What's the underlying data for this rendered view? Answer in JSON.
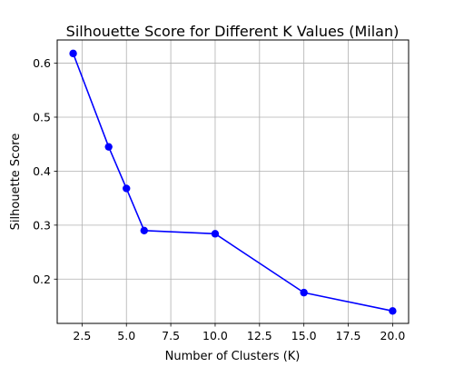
{
  "chart_data": {
    "type": "line",
    "title": "Silhouette Score for Different K Values (Milan)",
    "xlabel": "Number of Clusters (K)",
    "ylabel": "Silhouette Score",
    "xlim": [
      1.1,
      20.9
    ],
    "ylim": [
      0.118,
      0.643
    ],
    "xticks": [
      2.5,
      5.0,
      7.5,
      10.0,
      12.5,
      15.0,
      17.5,
      20.0
    ],
    "xtick_labels": [
      "2.5",
      "5.0",
      "7.5",
      "10.0",
      "12.5",
      "15.0",
      "17.5",
      "20.0"
    ],
    "yticks": [
      0.2,
      0.3,
      0.4,
      0.5,
      0.6
    ],
    "ytick_labels": [
      "0.2",
      "0.3",
      "0.4",
      "0.5",
      "0.6"
    ],
    "grid": true,
    "series": [
      {
        "x": [
          2,
          4,
          5,
          6,
          10,
          15,
          20
        ],
        "y": [
          0.618,
          0.445,
          0.368,
          0.29,
          0.284,
          0.175,
          0.141
        ],
        "color": "#0000ff",
        "marker": "circle"
      }
    ]
  }
}
